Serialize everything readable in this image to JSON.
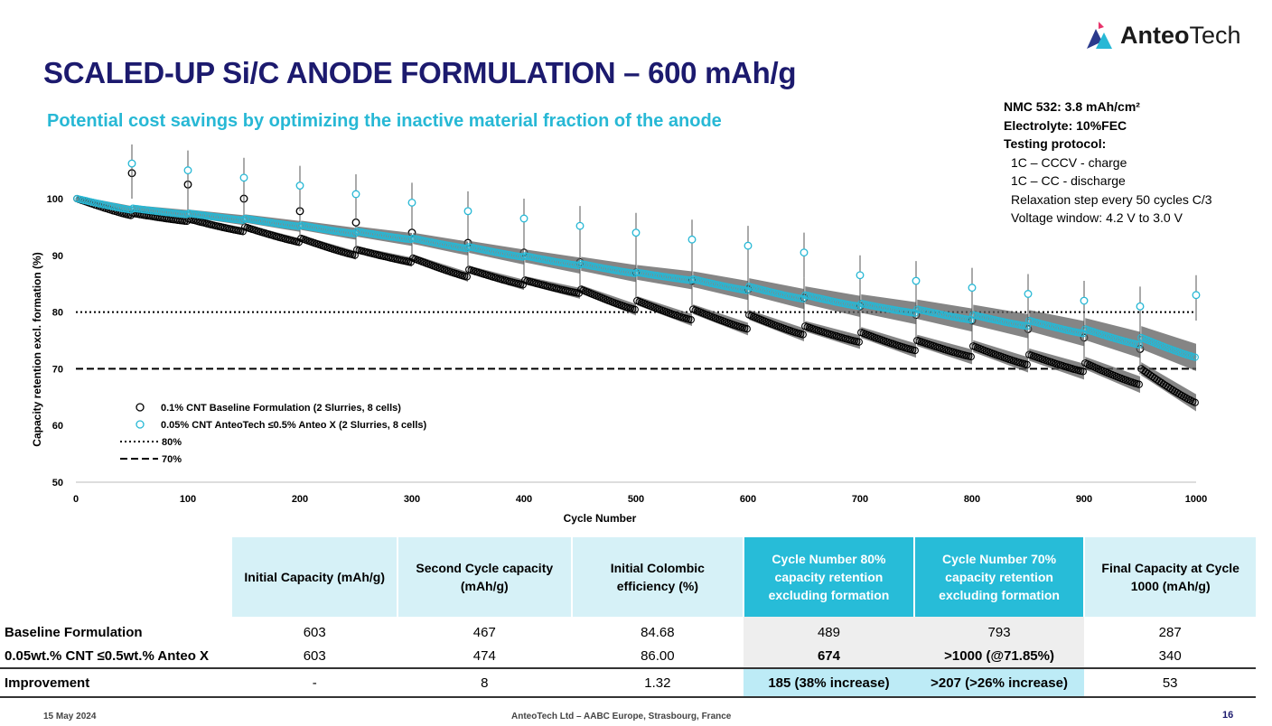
{
  "header": {
    "title": "SCALED-UP Si/C ANODE FORMULATION – 600 mAh/g",
    "subtitle": "Potential cost savings by optimizing the inactive material fraction of the anode",
    "logo_text_bold": "Anteo",
    "logo_text_rest": "Tech",
    "logo_icon": "anteotech-logo-icon"
  },
  "info": {
    "line1": "NMC 532: 3.8 mAh/cm²",
    "line2": "Electrolyte: 10%FEC",
    "line3": "Testing protocol:",
    "line4": "1C – CCCV - charge",
    "line5": "1C – CC - discharge",
    "line6": "Relaxation step every 50 cycles C/3",
    "line7": "Voltage window: 4.2 V to 3.0 V"
  },
  "chart_data": {
    "type": "scatter",
    "xlabel": "Cycle Number",
    "ylabel": "Capacity retention excl. formation (%)",
    "xlim": [
      0,
      1000
    ],
    "ylim": [
      50,
      100
    ],
    "xticks": [
      0,
      100,
      200,
      300,
      400,
      500,
      600,
      700,
      800,
      900,
      1000
    ],
    "yticks": [
      50,
      60,
      70,
      80,
      90,
      100
    ],
    "legend_position": "bottom-left",
    "series": [
      {
        "name": "0.1% CNT Baseline Formulation (2 Slurries, 8 cells)",
        "color": "#000000",
        "marker": "open-circle",
        "segments": [
          [
            1,
            100,
            50,
            97
          ],
          [
            51,
            97.4,
            100,
            96
          ],
          [
            101,
            96.4,
            150,
            94.2
          ],
          [
            151,
            95,
            200,
            92.3
          ],
          [
            201,
            93,
            250,
            90
          ],
          [
            251,
            91,
            300,
            88.8
          ],
          [
            301,
            89.5,
            350,
            86.2
          ],
          [
            351,
            87.5,
            400,
            84.8
          ],
          [
            401,
            85.6,
            450,
            83.3
          ],
          [
            451,
            84,
            500,
            80.4
          ],
          [
            501,
            82,
            550,
            78.6
          ],
          [
            551,
            80.5,
            600,
            77
          ],
          [
            601,
            79.5,
            650,
            76
          ],
          [
            651,
            77.5,
            700,
            74.7
          ],
          [
            701,
            76.4,
            750,
            73.2
          ],
          [
            751,
            75,
            800,
            72.1
          ],
          [
            801,
            74,
            850,
            70.7
          ],
          [
            851,
            72.5,
            900,
            69.5
          ],
          [
            901,
            71,
            950,
            67.2
          ],
          [
            951,
            70,
            1000,
            64
          ]
        ],
        "relax_points": [
          [
            50,
            104.5
          ],
          [
            100,
            102.5
          ],
          [
            150,
            100
          ],
          [
            200,
            97.8
          ],
          [
            250,
            95.8
          ],
          [
            300,
            94
          ],
          [
            350,
            92.2
          ],
          [
            400,
            90.5
          ],
          [
            450,
            88.8
          ],
          [
            500,
            87
          ],
          [
            550,
            85.5
          ],
          [
            600,
            84
          ],
          [
            650,
            82.5
          ],
          [
            700,
            81
          ],
          [
            750,
            79.5
          ],
          [
            800,
            78.5
          ],
          [
            850,
            77
          ],
          [
            900,
            75.5
          ],
          [
            950,
            73.5
          ]
        ]
      },
      {
        "name": "0.05% CNT AnteoTech ≤0.5% Anteo X (2 Slurries, 8 cells)",
        "color": "#27b8d5",
        "marker": "open-circle",
        "segments": [
          [
            1,
            100,
            50,
            98
          ],
          [
            51,
            98.3,
            100,
            97.2
          ],
          [
            101,
            97.4,
            150,
            96.2
          ],
          [
            151,
            96.5,
            200,
            95.1
          ],
          [
            201,
            95.3,
            250,
            93.8
          ],
          [
            251,
            94.2,
            300,
            92.8
          ],
          [
            301,
            93,
            350,
            91.2
          ],
          [
            351,
            91.5,
            400,
            89.7
          ],
          [
            401,
            89.9,
            450,
            88.2
          ],
          [
            451,
            88.5,
            500,
            86.8
          ],
          [
            501,
            87,
            550,
            85.6
          ],
          [
            551,
            85.8,
            600,
            83.8
          ],
          [
            601,
            84.5,
            650,
            82.3
          ],
          [
            651,
            83,
            700,
            81
          ],
          [
            701,
            81.5,
            750,
            79.8
          ],
          [
            751,
            80.5,
            800,
            78.6
          ],
          [
            801,
            79.5,
            850,
            77.5
          ],
          [
            851,
            78.5,
            900,
            76.2
          ],
          [
            901,
            77,
            950,
            74.2
          ],
          [
            951,
            75.5,
            1000,
            72
          ]
        ],
        "relax_points": [
          [
            50,
            106.2
          ],
          [
            100,
            105
          ],
          [
            150,
            103.7
          ],
          [
            200,
            102.3
          ],
          [
            250,
            100.8
          ],
          [
            300,
            99.3
          ],
          [
            350,
            97.8
          ],
          [
            400,
            96.5
          ],
          [
            450,
            95.2
          ],
          [
            500,
            94
          ],
          [
            550,
            92.8
          ],
          [
            600,
            91.7
          ],
          [
            650,
            90.5
          ],
          [
            700,
            86.5
          ],
          [
            750,
            85.5
          ],
          [
            800,
            84.3
          ],
          [
            850,
            83.2
          ],
          [
            900,
            82
          ],
          [
            950,
            81
          ],
          [
            1000,
            83
          ]
        ]
      },
      {
        "name": "80%",
        "color": "#000000",
        "style": "dotted",
        "y": 80
      },
      {
        "name": "70%",
        "color": "#000000",
        "style": "dashed",
        "y": 70
      }
    ]
  },
  "table": {
    "headers": [
      "Initial Capacity (mAh/g)",
      "Second Cycle capacity (mAh/g)",
      "Initial Colombic efficiency (%)",
      "Cycle Number 80% capacity retention excluding formation",
      "Cycle Number 70% capacity retention excluding formation",
      "Final Capacity at Cycle 1000 (mAh/g)"
    ],
    "rows": [
      {
        "label": "Baseline Formulation",
        "values": [
          "603",
          "467",
          "84.68",
          "489",
          "793",
          "287"
        ]
      },
      {
        "label": "0.05wt.% CNT ≤0.5wt.% Anteo X",
        "values": [
          "603",
          "474",
          "86.00",
          "674",
          ">1000 (@71.85%)",
          "340"
        ]
      },
      {
        "label": "Improvement",
        "values": [
          "-",
          "8",
          "1.32",
          "185 (38% increase)",
          ">207 (>26% increase)",
          "53"
        ]
      }
    ]
  },
  "footer": {
    "date": "15 May 2024",
    "center": "AnteoTech Ltd – AABC Europe, Strasbourg, France",
    "page": "16"
  }
}
